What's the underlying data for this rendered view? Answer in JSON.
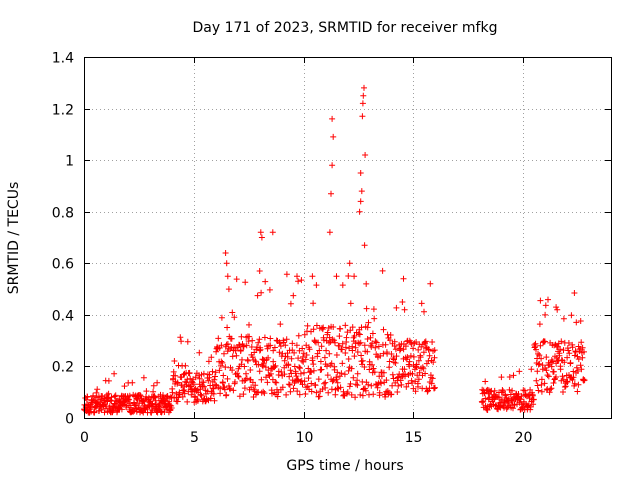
{
  "chart_data": {
    "type": "scatter",
    "title": "Day 171 of 2023, SRMTID for receiver mfkg",
    "xlabel": "GPS time / hours",
    "ylabel": "SRMTID / TECUs",
    "xlim": [
      0,
      24
    ],
    "ylim": [
      0,
      1.4
    ],
    "xticks": [
      0,
      5,
      10,
      15,
      20
    ],
    "xtick_labels": [
      "0",
      "5",
      "10",
      "15",
      "20"
    ],
    "yticks": [
      0,
      0.2,
      0.4,
      0.6,
      0.8,
      1.0,
      1.2,
      1.4
    ],
    "ytick_labels": [
      "0",
      "0.2",
      "0.4",
      "0.6",
      "0.8",
      "1",
      "1.2",
      "1.4"
    ],
    "grid": true,
    "marker": "+",
    "color": "#ff0000",
    "series": [
      {
        "name": "SRMTID",
        "segments": [
          {
            "x_start": 0.0,
            "x_end": 4.0,
            "base": 0.055,
            "spread": 0.035,
            "density": 70
          },
          {
            "x_start": 4.0,
            "x_end": 6.0,
            "base": 0.12,
            "spread": 0.06,
            "density": 60
          },
          {
            "x_start": 6.0,
            "x_end": 10.0,
            "base": 0.2,
            "spread": 0.12,
            "density": 60
          },
          {
            "x_start": 10.0,
            "x_end": 14.0,
            "base": 0.22,
            "spread": 0.14,
            "density": 60
          },
          {
            "x_start": 14.0,
            "x_end": 16.0,
            "base": 0.2,
            "spread": 0.1,
            "density": 60
          },
          {
            "x_start": 18.1,
            "x_end": 20.5,
            "base": 0.07,
            "spread": 0.04,
            "density": 60
          },
          {
            "x_start": 20.5,
            "x_end": 22.8,
            "base": 0.2,
            "spread": 0.1,
            "density": 60
          }
        ],
        "highlight_points": [
          [
            6.45,
            0.64
          ],
          [
            6.5,
            0.6
          ],
          [
            6.55,
            0.55
          ],
          [
            6.6,
            0.5
          ],
          [
            8.05,
            0.72
          ],
          [
            8.1,
            0.7
          ],
          [
            8.0,
            0.57
          ],
          [
            8.6,
            0.72
          ],
          [
            9.7,
            0.55
          ],
          [
            9.75,
            0.53
          ],
          [
            10.4,
            0.55
          ],
          [
            11.2,
            0.72
          ],
          [
            11.25,
            0.87
          ],
          [
            11.3,
            0.98
          ],
          [
            11.35,
            1.09
          ],
          [
            11.3,
            1.16
          ],
          [
            11.5,
            0.55
          ],
          [
            12.1,
            0.6
          ],
          [
            12.3,
            0.55
          ],
          [
            12.55,
            0.8
          ],
          [
            12.6,
            0.84
          ],
          [
            12.65,
            0.88
          ],
          [
            12.6,
            0.95
          ],
          [
            12.7,
            1.22
          ],
          [
            12.72,
            1.25
          ],
          [
            12.75,
            1.28
          ],
          [
            12.68,
            1.17
          ],
          [
            12.8,
            1.02
          ],
          [
            12.78,
            0.67
          ],
          [
            12.85,
            0.52
          ],
          [
            14.55,
            0.54
          ],
          [
            14.5,
            0.45
          ],
          [
            14.6,
            0.42
          ],
          [
            21.0,
            0.4
          ],
          [
            21.5,
            0.43
          ],
          [
            21.55,
            0.42
          ]
        ]
      }
    ]
  }
}
